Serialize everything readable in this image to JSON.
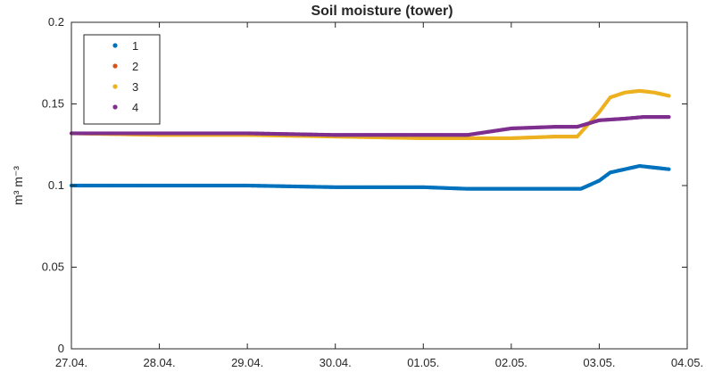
{
  "chart_data": {
    "type": "scatter",
    "title": "Soil moisture (tower)",
    "xlabel": "",
    "ylabel": "m³ m⁻³",
    "xlim": [
      "2018-04-27",
      "2018-05-04"
    ],
    "ylim": [
      0,
      0.2
    ],
    "x_tick_labels": [
      "27.04.",
      "28.04.",
      "29.04.",
      "30.04.",
      "01.05.",
      "02.05.",
      "03.05.",
      "04.05."
    ],
    "y_tick_labels": [
      "0",
      "0.05",
      "0.1",
      "0.15",
      "0.2"
    ],
    "y_ticks": [
      0,
      0.05,
      0.1,
      0.15,
      0.2
    ],
    "grid": false,
    "legend_position": "top-left",
    "series": [
      {
        "name": "1",
        "color": "#0072BD",
        "points": [
          [
            "2018-04-27T00:00",
            0.1
          ],
          [
            "2018-04-28T00:00",
            0.1
          ],
          [
            "2018-04-29T00:00",
            0.1
          ],
          [
            "2018-04-30T00:00",
            0.099
          ],
          [
            "2018-05-01T00:00",
            0.099
          ],
          [
            "2018-05-01T12:00",
            0.098
          ],
          [
            "2018-05-02T00:00",
            0.098
          ],
          [
            "2018-05-02T12:00",
            0.098
          ],
          [
            "2018-05-02T19:00",
            0.098
          ],
          [
            "2018-05-03T00:00",
            0.103
          ],
          [
            "2018-05-03T03:00",
            0.108
          ],
          [
            "2018-05-03T07:00",
            0.11
          ],
          [
            "2018-05-03T11:00",
            0.112
          ],
          [
            "2018-05-03T15:00",
            0.111
          ],
          [
            "2018-05-03T19:00",
            0.11
          ]
        ]
      },
      {
        "name": "2",
        "color": "#D95319",
        "points": []
      },
      {
        "name": "3",
        "color": "#EDB120",
        "points": [
          [
            "2018-04-27T00:00",
            0.132
          ],
          [
            "2018-04-28T00:00",
            0.131
          ],
          [
            "2018-04-29T00:00",
            0.131
          ],
          [
            "2018-04-30T00:00",
            0.13
          ],
          [
            "2018-05-01T00:00",
            0.129
          ],
          [
            "2018-05-01T12:00",
            0.129
          ],
          [
            "2018-05-02T00:00",
            0.129
          ],
          [
            "2018-05-02T12:00",
            0.13
          ],
          [
            "2018-05-02T18:00",
            0.13
          ],
          [
            "2018-05-03T00:00",
            0.145
          ],
          [
            "2018-05-03T03:00",
            0.154
          ],
          [
            "2018-05-03T07:00",
            0.157
          ],
          [
            "2018-05-03T11:00",
            0.158
          ],
          [
            "2018-05-03T15:00",
            0.157
          ],
          [
            "2018-05-03T19:00",
            0.155
          ]
        ]
      },
      {
        "name": "4",
        "color": "#7E2F8E",
        "points": [
          [
            "2018-04-27T00:00",
            0.132
          ],
          [
            "2018-04-28T00:00",
            0.132
          ],
          [
            "2018-04-29T00:00",
            0.132
          ],
          [
            "2018-04-30T00:00",
            0.131
          ],
          [
            "2018-05-01T00:00",
            0.131
          ],
          [
            "2018-05-01T12:00",
            0.131
          ],
          [
            "2018-05-02T00:00",
            0.135
          ],
          [
            "2018-05-02T12:00",
            0.136
          ],
          [
            "2018-05-02T18:00",
            0.136
          ],
          [
            "2018-05-03T00:00",
            0.14
          ],
          [
            "2018-05-03T07:00",
            0.141
          ],
          [
            "2018-05-03T12:00",
            0.142
          ],
          [
            "2018-05-03T19:00",
            0.142
          ]
        ]
      }
    ]
  }
}
